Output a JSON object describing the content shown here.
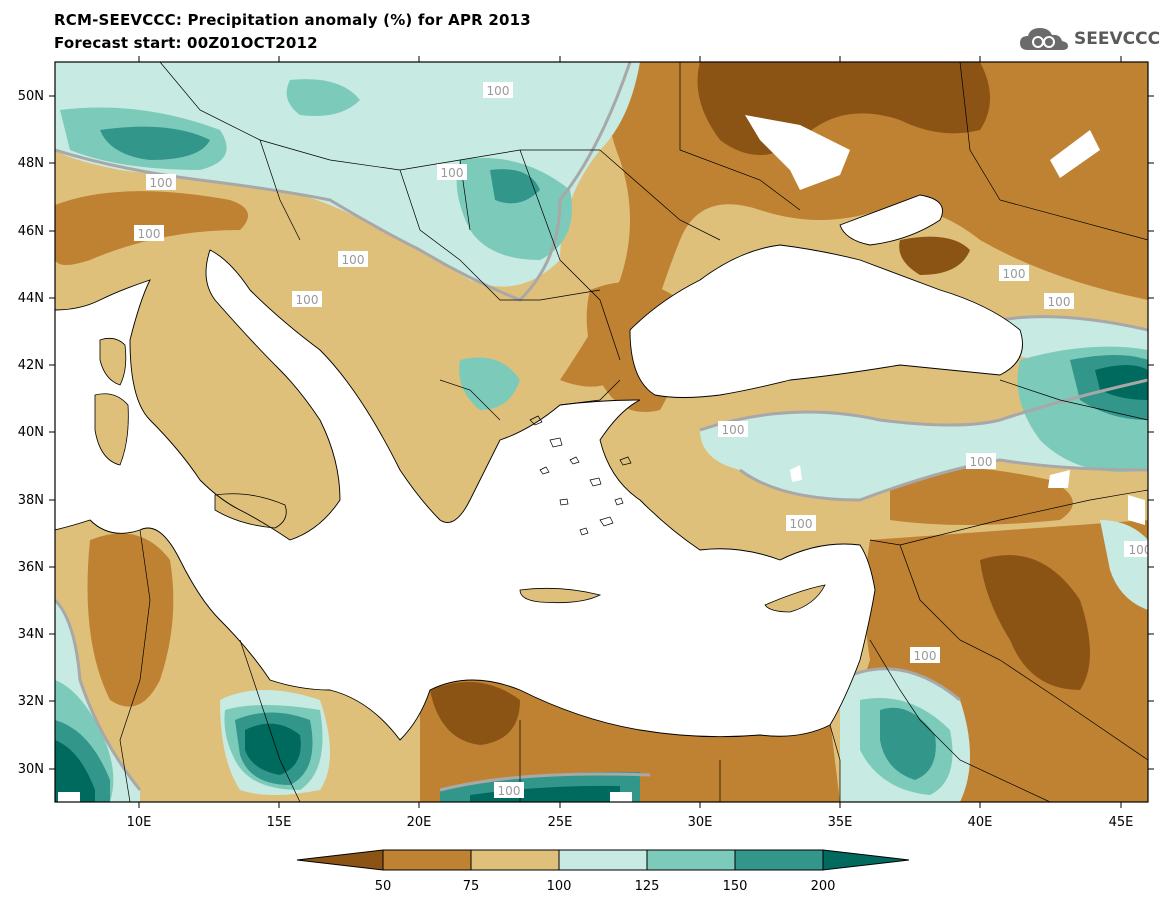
{
  "header": {
    "title_line1": "RCM-SEEVCCC: Precipitation anomaly (%) for APR 2013",
    "title_line2": "Forecast start: 00Z01OCT2012",
    "logo_text": "SEEVCCC"
  },
  "map": {
    "lon_ticks": [
      "10E",
      "15E",
      "20E",
      "25E",
      "30E",
      "35E",
      "40E",
      "45E"
    ],
    "lat_ticks": [
      "50N",
      "48N",
      "46N",
      "44N",
      "42N",
      "40N",
      "38N",
      "36N",
      "34N",
      "32N",
      "30N"
    ],
    "contour_label": "100"
  },
  "legend": {
    "labels": [
      "50",
      "75",
      "100",
      "125",
      "150",
      "200"
    ],
    "colors": {
      "lt50": "#8b5414",
      "50_75": "#bf8232",
      "75_100": "#dfc07a",
      "100_125": "#c7eae2",
      "125_150": "#7ccaba",
      "150_200": "#33968a",
      "gt200": "#006a5e",
      "sea": "#ffffff",
      "contour": "#a8a8a8"
    }
  }
}
